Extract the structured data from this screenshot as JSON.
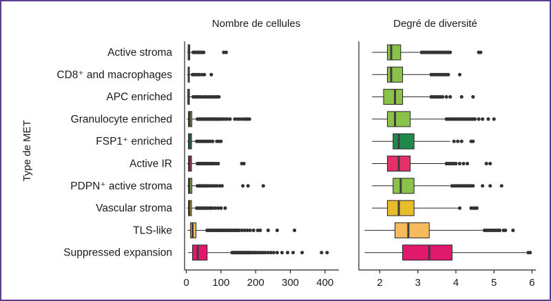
{
  "chart_data": {
    "type": "boxplot",
    "y_axis_label": "Type de MET",
    "categories": [
      "Active stroma",
      "CD8⁺ and macrophages",
      "APC enriched",
      "Granulocyte enriched",
      "FSP1⁺ enriched",
      "Active IR",
      "PDPN⁺ active stroma",
      "Vascular stroma",
      "TLS-like",
      "Suppressed expansion"
    ],
    "colors": [
      "#8bc34a",
      "#8bc34a",
      "#8bc34a",
      "#8bc34a",
      "#1f8a4c",
      "#e6306a",
      "#8bc34a",
      "#e8bc2a",
      "#f6bb5c",
      "#e1196d"
    ],
    "panels": [
      {
        "title": "Nombre de cellules",
        "xlim": [
          -5,
          440
        ],
        "ticks": [
          0,
          100,
          200,
          300,
          400
        ],
        "boxes": [
          {
            "whislo": 2,
            "q1": 5,
            "med": 7,
            "q3": 10,
            "whishi": 18,
            "fliers": [
              20,
              24,
              28,
              32,
              36,
              40,
              45,
              50,
              108,
              115
            ]
          },
          {
            "whislo": 2,
            "q1": 5,
            "med": 7,
            "q3": 9,
            "whishi": 15,
            "fliers": [
              18,
              22,
              26,
              32,
              38,
              45,
              52,
              72
            ]
          },
          {
            "whislo": 2,
            "q1": 4,
            "med": 6,
            "q3": 9,
            "whishi": 16,
            "fliers": [
              20,
              25,
              30,
              35,
              40,
              45,
              52,
              58,
              64,
              70,
              76,
              82,
              88,
              94
            ]
          },
          {
            "whislo": 2,
            "q1": 6,
            "med": 10,
            "q3": 16,
            "whishi": 28,
            "fliers": [
              32,
              36,
              40,
              44,
              48,
              52,
              56,
              60,
              64,
              68,
              72,
              76,
              80,
              84,
              88,
              92,
              96,
              100,
              106,
              112,
              118,
              126,
              140,
              148,
              155,
              163,
              170,
              176,
              182
            ]
          },
          {
            "whislo": 2,
            "q1": 6,
            "med": 9,
            "q3": 15,
            "whishi": 26,
            "fliers": [
              30,
              35,
              40,
              45,
              50,
              55,
              60,
              65,
              70,
              76,
              88,
              94,
              100
            ]
          },
          {
            "whislo": 2,
            "q1": 6,
            "med": 9,
            "q3": 15,
            "whishi": 28,
            "fliers": [
              32,
              36,
              40,
              44,
              48,
              52,
              56,
              60,
              64,
              68,
              72,
              76,
              80,
              86,
              92,
              160,
              166
            ]
          },
          {
            "whislo": 2,
            "q1": 6,
            "med": 9,
            "q3": 16,
            "whishi": 28,
            "fliers": [
              32,
              36,
              40,
              44,
              48,
              52,
              56,
              60,
              64,
              70,
              76,
              82,
              88,
              96,
              103,
              163,
              178,
              222
            ]
          },
          {
            "whislo": 2,
            "q1": 6,
            "med": 9,
            "q3": 15,
            "whishi": 26,
            "fliers": [
              30,
              35,
              40,
              45,
              50,
              55,
              60,
              65,
              70,
              76,
              84,
              92,
              100,
              112
            ]
          },
          {
            "whislo": 3,
            "q1": 12,
            "med": 18,
            "q3": 28,
            "whishi": 55,
            "fliers": [
              60,
              64,
              68,
              72,
              76,
              80,
              84,
              88,
              92,
              96,
              100,
              104,
              108,
              112,
              116,
              120,
              124,
              128,
              132,
              136,
              140,
              144,
              148,
              152,
              160,
              168,
              176,
              184,
              194,
              206,
              213,
              236,
              262,
              312
            ]
          },
          {
            "whislo": 5,
            "q1": 18,
            "med": 33,
            "q3": 60,
            "whishi": 128,
            "fliers": [
              132,
              135,
              138,
              141,
              144,
              147,
              150,
              153,
              156,
              159,
              162,
              165,
              168,
              171,
              174,
              177,
              180,
              183,
              186,
              190,
              195,
              200,
              205,
              210,
              216,
              222,
              228,
              236,
              244,
              252,
              262,
              276,
              292,
              308,
              334,
              390,
              406
            ]
          }
        ]
      },
      {
        "title": "Degré de diversité",
        "xlim": [
          1.45,
          6.1
        ],
        "ticks": [
          2,
          3,
          4,
          5,
          6
        ],
        "boxes": [
          {
            "whislo": 1.8,
            "q1": 2.2,
            "med": 2.3,
            "q3": 2.55,
            "whishi": 3.05,
            "fliers": [
              3.1,
              3.15,
              3.2,
              3.25,
              3.3,
              3.35,
              3.4,
              3.45,
              3.5,
              3.55,
              3.6,
              3.65,
              3.7,
              3.75,
              3.8,
              3.85,
              4.6,
              4.65
            ]
          },
          {
            "whislo": 1.8,
            "q1": 2.2,
            "med": 2.3,
            "q3": 2.6,
            "whishi": 3.3,
            "fliers": [
              3.35,
              3.4,
              3.45,
              3.5,
              3.55,
              3.6,
              3.65,
              3.7,
              3.75,
              3.8,
              4.1
            ]
          },
          {
            "whislo": 1.8,
            "q1": 2.1,
            "med": 2.4,
            "q3": 2.6,
            "whishi": 3.3,
            "fliers": [
              3.35,
              3.4,
              3.45,
              3.5,
              3.55,
              3.6,
              3.65,
              3.75,
              3.85,
              4.15,
              4.45
            ]
          },
          {
            "whislo": 1.8,
            "q1": 2.2,
            "med": 2.4,
            "q3": 2.8,
            "whishi": 3.7,
            "fliers": [
              3.75,
              3.8,
              3.85,
              3.9,
              3.95,
              4.0,
              4.05,
              4.1,
              4.15,
              4.2,
              4.25,
              4.3,
              4.35,
              4.4,
              4.45,
              4.5,
              4.6,
              4.7,
              4.85,
              5.0
            ]
          },
          {
            "whislo": 1.8,
            "q1": 2.35,
            "med": 2.5,
            "q3": 2.9,
            "whishi": 3.85,
            "fliers": [
              3.95,
              4.05,
              4.15,
              4.4,
              4.45
            ]
          },
          {
            "whislo": 1.8,
            "q1": 2.2,
            "med": 2.5,
            "q3": 2.8,
            "whishi": 3.7,
            "fliers": [
              3.75,
              3.8,
              3.85,
              3.9,
              3.95,
              4.0,
              4.1,
              4.2,
              4.3,
              4.8,
              4.9
            ]
          },
          {
            "whislo": 1.8,
            "q1": 2.35,
            "med": 2.55,
            "q3": 2.9,
            "whishi": 3.85,
            "fliers": [
              3.9,
              3.95,
              4.0,
              4.05,
              4.1,
              4.15,
              4.2,
              4.25,
              4.3,
              4.35,
              4.4,
              4.45,
              4.7,
              4.9,
              5.2
            ]
          },
          {
            "whislo": 1.8,
            "q1": 2.2,
            "med": 2.5,
            "q3": 2.9,
            "whishi": 4.05,
            "fliers": [
              4.1,
              4.4,
              4.45,
              4.5,
              4.55
            ]
          },
          {
            "whislo": 1.6,
            "q1": 2.4,
            "med": 2.75,
            "q3": 3.3,
            "whishi": 4.7,
            "fliers": [
              4.75,
              4.8,
              4.85,
              4.9,
              4.95,
              5.0,
              5.05,
              5.1,
              5.15,
              5.25,
              5.3,
              5.5
            ]
          },
          {
            "whislo": 1.6,
            "q1": 2.6,
            "med": 3.3,
            "q3": 3.9,
            "whishi": 5.85,
            "fliers": [
              5.9,
              5.95
            ]
          }
        ]
      }
    ]
  }
}
